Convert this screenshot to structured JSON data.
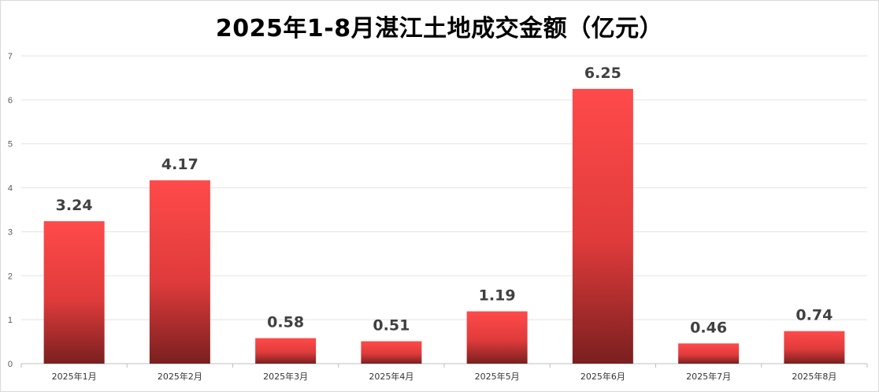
{
  "chart_data": {
    "type": "bar",
    "title": "2025年1-8月湛江土地成交金额（亿元）",
    "categories": [
      "2025年1月",
      "2025年2月",
      "2025年3月",
      "2025年4月",
      "2025年5月",
      "2025年6月",
      "2025年7月",
      "2025年8月"
    ],
    "values": [
      3.24,
      4.17,
      0.58,
      0.51,
      1.19,
      6.25,
      0.46,
      0.74
    ],
    "data_labels": [
      "3.24",
      "4.17",
      "0.58",
      "0.51",
      "1.19",
      "6.25",
      "0.46",
      "0.74"
    ],
    "y_ticks": [
      "0",
      "1",
      "2",
      "3",
      "4",
      "5",
      "6",
      "7"
    ],
    "ylim": [
      0,
      7
    ],
    "grid": true,
    "legend": "none",
    "colors": {
      "bar_top": "#ff4a4a",
      "bar_mid": "#e03b3b",
      "bar_bottom": "#7a1f1f",
      "grid": "#e3e3e3"
    }
  }
}
